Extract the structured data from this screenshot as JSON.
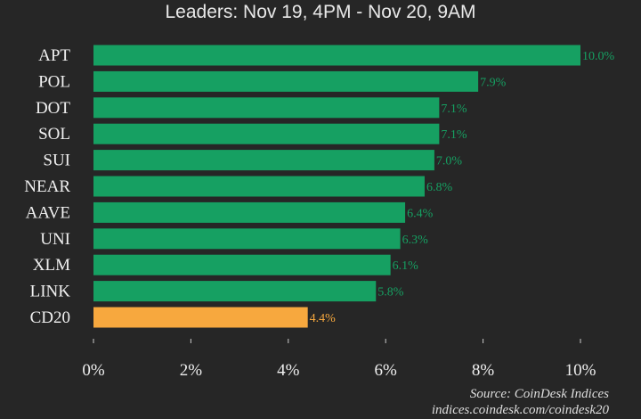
{
  "chart_data": {
    "type": "bar",
    "orientation": "horizontal",
    "title": "Leaders: Nov 19, 4PM - Nov 20, 9AM",
    "categories": [
      "APT",
      "POL",
      "DOT",
      "SOL",
      "SUI",
      "NEAR",
      "AAVE",
      "UNI",
      "XLM",
      "LINK",
      "CD20"
    ],
    "values": [
      10.0,
      7.9,
      7.1,
      7.1,
      7.0,
      6.8,
      6.4,
      6.3,
      6.1,
      5.8,
      4.4
    ],
    "value_labels": [
      "10.0%",
      "7.9%",
      "7.1%",
      "7.1%",
      "7.0%",
      "6.8%",
      "6.4%",
      "6.3%",
      "6.1%",
      "5.8%",
      "4.4%"
    ],
    "xlim": [
      0,
      10
    ],
    "xticks": [
      0,
      2,
      4,
      6,
      8,
      10
    ],
    "xtick_labels": [
      "0%",
      "2%",
      "4%",
      "6%",
      "8%",
      "10%"
    ],
    "grid": false,
    "colors": {
      "default": "#16a062",
      "highlight": "#f7a83e",
      "background": "#262626"
    },
    "highlight_category": "CD20"
  },
  "source": "Source: CoinDesk Indices",
  "url": "indices.coindesk.com/coindesk20"
}
